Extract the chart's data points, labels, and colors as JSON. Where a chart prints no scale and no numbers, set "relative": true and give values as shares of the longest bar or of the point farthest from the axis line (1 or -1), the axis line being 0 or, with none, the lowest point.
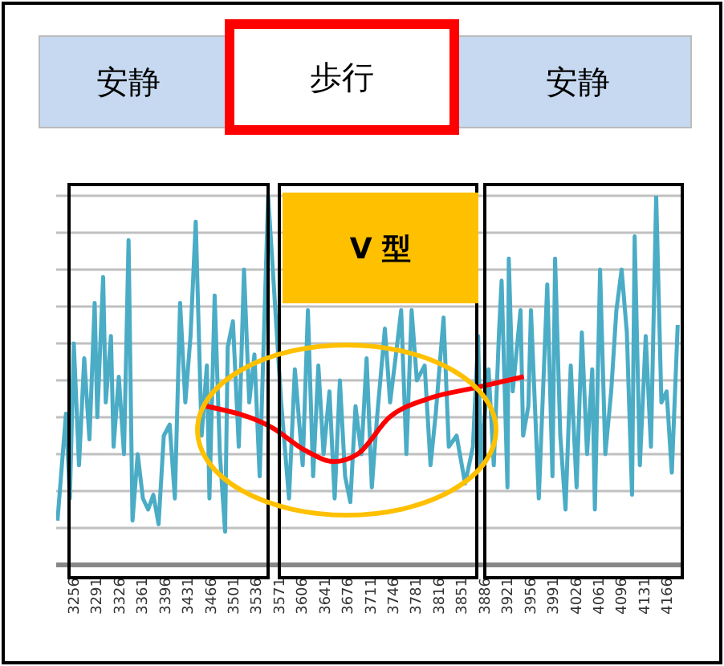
{
  "chart_data": {
    "type": "line",
    "relative": true,
    "grid": "y",
    "marker": "none",
    "legend": false,
    "annotations": [
      "安静",
      "歩行",
      "安静",
      "V 型"
    ],
    "xlim": [
      3230,
      4190
    ],
    "xticks": [
      3256,
      3291,
      3326,
      3361,
      3396,
      3431,
      3466,
      3501,
      3536,
      3571,
      3606,
      3641,
      3676,
      3711,
      3746,
      3781,
      3816,
      3851,
      3886,
      3921,
      3956,
      3991,
      4026,
      4061,
      4096,
      4131,
      4166
    ],
    "series": [
      {
        "color": "#4bacc6",
        "x": [
          3232,
          3245,
          3251,
          3257,
          3265,
          3273,
          3281,
          3289,
          3293,
          3302,
          3306,
          3314,
          3318,
          3326,
          3334,
          3341,
          3347,
          3355,
          3363,
          3371,
          3379,
          3387,
          3395,
          3404,
          3412,
          3420,
          3428,
          3436,
          3444,
          3453,
          3461,
          3465,
          3473,
          3481,
          3489,
          3493,
          3501,
          3510,
          3518,
          3526,
          3534,
          3542,
          3555,
          3575,
          3587,
          3596,
          3608,
          3616,
          3624,
          3632,
          3640,
          3649,
          3657,
          3665,
          3673,
          3681,
          3689,
          3698,
          3706,
          3714,
          3722,
          3734,
          3742,
          3751,
          3759,
          3767,
          3775,
          3783,
          3795,
          3804,
          3812,
          3824,
          3832,
          3844,
          3857,
          3869,
          3877,
          3881,
          3893,
          3901,
          3909,
          3913,
          3922,
          3924,
          3930,
          3942,
          3946,
          3954,
          3958,
          3970,
          3983,
          3991,
          3995,
          4003,
          4011,
          4019,
          4028,
          4036,
          4044,
          4052,
          4056,
          4064,
          4072,
          4081,
          4089,
          4097,
          4105,
          4113,
          4117,
          4125,
          4134,
          4142,
          4150,
          4158,
          4166,
          4174,
          4183
        ],
        "values": [
          0.12,
          0.41,
          0.18,
          0.6,
          0.27,
          0.56,
          0.34,
          0.71,
          0.4,
          0.78,
          0.44,
          0.62,
          0.32,
          0.51,
          0.3,
          0.88,
          0.12,
          0.3,
          0.18,
          0.15,
          0.19,
          0.11,
          0.35,
          0.38,
          0.18,
          0.71,
          0.44,
          0.62,
          0.93,
          0.35,
          0.54,
          0.18,
          0.73,
          0.3,
          0.09,
          0.59,
          0.66,
          0.32,
          0.8,
          0.44,
          0.57,
          0.24,
          1.0,
          0.44,
          0.18,
          0.53,
          0.27,
          0.69,
          0.24,
          0.54,
          0.3,
          0.47,
          0.18,
          0.5,
          0.24,
          0.17,
          0.43,
          0.3,
          0.56,
          0.21,
          0.4,
          0.64,
          0.44,
          0.57,
          0.69,
          0.3,
          0.69,
          0.5,
          0.54,
          0.27,
          0.41,
          0.67,
          0.32,
          0.35,
          0.22,
          0.32,
          0.62,
          0.27,
          0.53,
          0.27,
          0.63,
          0.77,
          0.21,
          0.83,
          0.47,
          0.69,
          0.35,
          0.43,
          0.69,
          0.18,
          0.76,
          0.24,
          0.83,
          0.35,
          0.15,
          0.54,
          0.21,
          0.63,
          0.3,
          0.53,
          0.15,
          0.8,
          0.3,
          0.47,
          0.69,
          0.8,
          0.63,
          0.19,
          0.89,
          0.27,
          0.62,
          0.32,
          1.0,
          0.44,
          0.47,
          0.25,
          0.65
        ]
      },
      {
        "color": "#ff0000",
        "x": [
          3460,
          3563,
          3612,
          3656,
          3692,
          3741,
          3800,
          3873,
          3947
        ],
        "values": [
          0.43,
          0.37,
          0.31,
          0.28,
          0.3,
          0.4,
          0.45,
          0.48,
          0.51
        ]
      }
    ]
  }
}
